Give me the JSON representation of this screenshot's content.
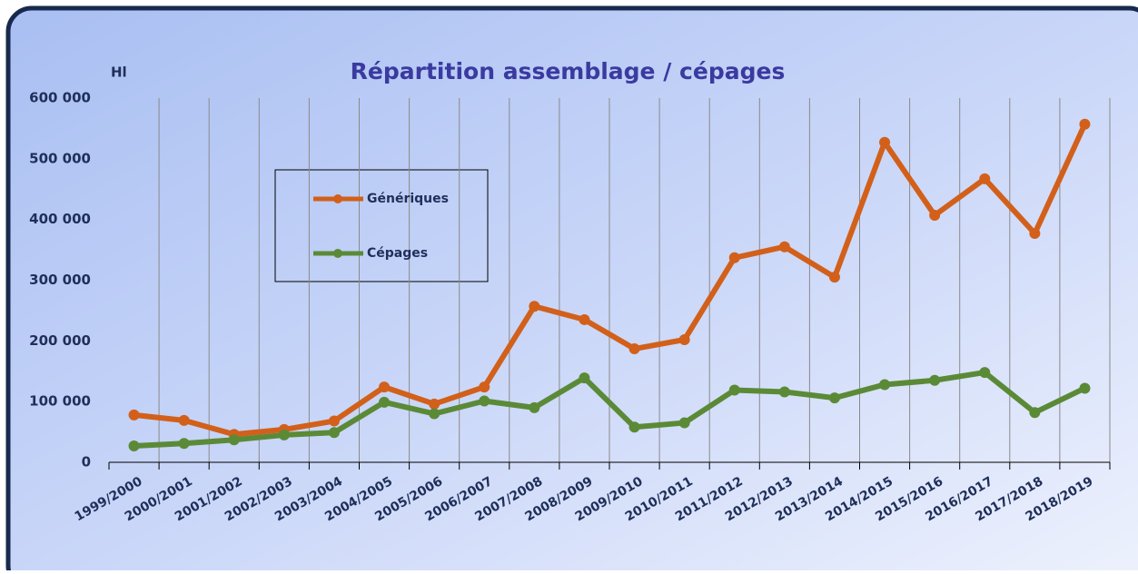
{
  "chart_data": {
    "type": "line",
    "title": "Répartition assemblage / cépages",
    "y_label": "Hl",
    "categories": [
      "1999/2000",
      "2000/2001",
      "2001/2002",
      "2002/2003",
      "2003/2004",
      "2004/2005",
      "2005/2006",
      "2006/2007",
      "2007/2008",
      "2008/2009",
      "2009/2010",
      "2010/2011",
      "2011/2012",
      "2012/2013",
      "2013/2014",
      "2014/2015",
      "2015/2016",
      "2016/2017",
      "2017/2018",
      "2018/2019"
    ],
    "series": [
      {
        "name": "Génériques",
        "color": "#d2601a",
        "values": [
          78000,
          69000,
          46000,
          54000,
          68000,
          124000,
          96000,
          124000,
          257000,
          235000,
          187000,
          202000,
          337000,
          355000,
          305000,
          527000,
          407000,
          467000,
          377000,
          557000
        ]
      },
      {
        "name": "Cépages",
        "color": "#5b8a37",
        "values": [
          27000,
          31000,
          37000,
          45000,
          49000,
          99000,
          80000,
          101000,
          90000,
          139000,
          58000,
          65000,
          119000,
          116000,
          106000,
          128000,
          135000,
          148000,
          82000,
          122000
        ]
      }
    ],
    "ylim": [
      0,
      600000
    ],
    "yticks": [
      0,
      {
        "value": 100000,
        "label": "100 000"
      },
      {
        "value": 200000,
        "label": "200 000"
      },
      {
        "value": 300000,
        "label": "300 000"
      },
      {
        "value": 400000,
        "label": "400 000"
      },
      {
        "value": 500000,
        "label": "500 000"
      },
      {
        "value": 600000,
        "label": "600 000"
      }
    ],
    "grid": "vertical"
  }
}
